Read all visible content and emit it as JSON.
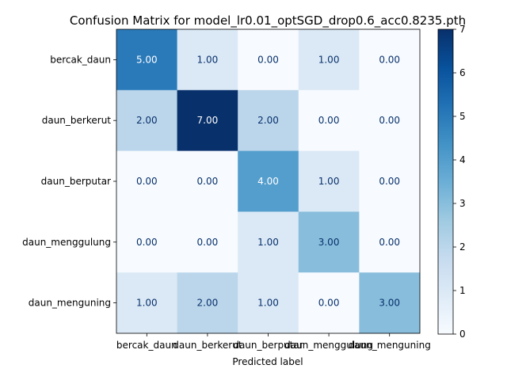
{
  "chart_data": {
    "type": "heatmap",
    "title": "Confusion Matrix for model_lr0.01_optSGD_drop0.6_acc0.8235.pth",
    "xlabel": "Predicted label",
    "ylabel": "",
    "x_categories": [
      "bercak_daun",
      "daun_berkerut",
      "daun_berputar",
      "daun_menggulung",
      "daun_menguning"
    ],
    "y_categories": [
      "bercak_daun",
      "daun_berkerut",
      "daun_berputar",
      "daun_menggulung",
      "daun_menguning"
    ],
    "values": [
      [
        5,
        1,
        0,
        1,
        0
      ],
      [
        2,
        7,
        2,
        0,
        0
      ],
      [
        0,
        0,
        4,
        1,
        0
      ],
      [
        0,
        0,
        1,
        3,
        0
      ],
      [
        1,
        2,
        1,
        0,
        3
      ]
    ],
    "cell_labels": [
      [
        "5.00",
        "1.00",
        "0.00",
        "1.00",
        "0.00"
      ],
      [
        "2.00",
        "7.00",
        "2.00",
        "0.00",
        "0.00"
      ],
      [
        "0.00",
        "0.00",
        "4.00",
        "1.00",
        "0.00"
      ],
      [
        "0.00",
        "0.00",
        "1.00",
        "3.00",
        "0.00"
      ],
      [
        "1.00",
        "2.00",
        "1.00",
        "0.00",
        "3.00"
      ]
    ],
    "colormap": "Blues",
    "colorbar": {
      "range": [
        0,
        7
      ],
      "ticks": [
        "0",
        "1",
        "2",
        "3",
        "4",
        "5",
        "6",
        "7"
      ]
    }
  }
}
